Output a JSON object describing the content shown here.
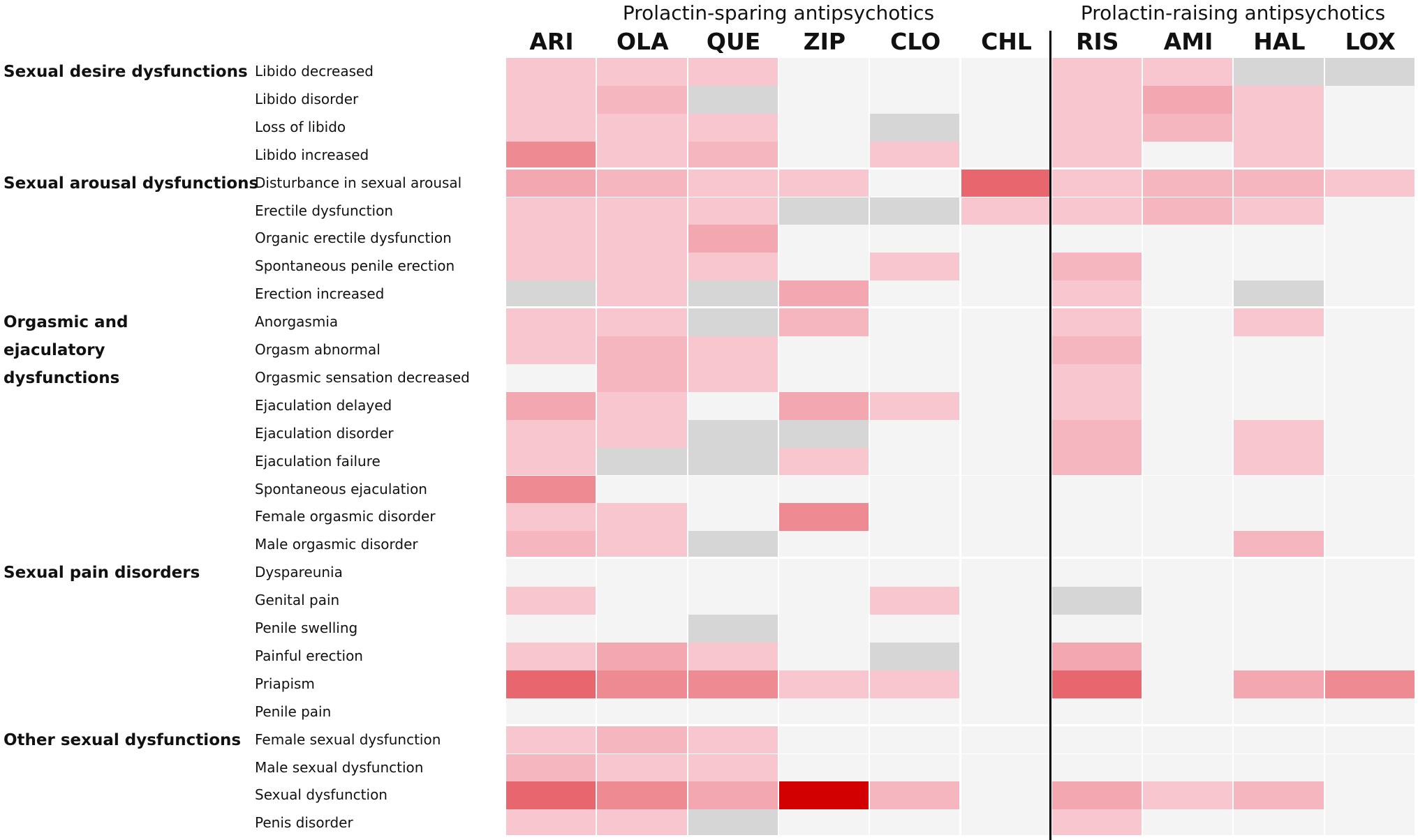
{
  "chart_data": {
    "type": "heatmap",
    "group_titles": [
      "Prolactin-sparing antipsychotics",
      "Prolactin-raising antipsychotics"
    ],
    "columns": [
      "ARI",
      "OLA",
      "QUE",
      "ZIP",
      "CLO",
      "CHL",
      "RIS",
      "AMI",
      "HAL",
      "LOX"
    ],
    "column_groups": [
      0,
      0,
      0,
      0,
      0,
      0,
      1,
      1,
      1,
      1
    ],
    "colors": {
      "0": "#f4f4f4",
      "NA": "#d6d6d6",
      "1": "#f8c6cf",
      "2": "#f6b6c0",
      "3": "#f3a7b0",
      "4": "#ee8a91",
      "5": "#e8666d",
      "6": "#d20000"
    },
    "categories": [
      {
        "label": "Sexual desire dysfunctions",
        "rows": [
          {
            "term": "Libido decreased",
            "values": [
              1,
              1,
              1,
              0,
              0,
              0,
              1,
              1,
              "NA",
              "NA"
            ]
          },
          {
            "term": "Libido disorder",
            "values": [
              1,
              2,
              "NA",
              0,
              0,
              0,
              1,
              3,
              1,
              0
            ]
          },
          {
            "term": "Loss of libido",
            "values": [
              1,
              1,
              1,
              0,
              "NA",
              0,
              1,
              2,
              1,
              0
            ]
          },
          {
            "term": "Libido increased",
            "values": [
              4,
              1,
              2,
              0,
              1,
              0,
              1,
              0,
              1,
              0
            ]
          }
        ]
      },
      {
        "label": "Sexual arousal dysfunctions",
        "rows": [
          {
            "term": "Disturbance in sexual arousal",
            "values": [
              3,
              2,
              1,
              1,
              0,
              5,
              1,
              2,
              2,
              1
            ]
          },
          {
            "term": "Erectile dysfunction",
            "values": [
              1,
              1,
              1,
              "NA",
              "NA",
              1,
              1,
              2,
              1,
              0
            ]
          },
          {
            "term": "Organic erectile dysfunction",
            "values": [
              1,
              1,
              3,
              0,
              0,
              0,
              0,
              0,
              0,
              0
            ]
          },
          {
            "term": "Spontaneous penile erection",
            "values": [
              1,
              1,
              1,
              0,
              1,
              0,
              2,
              0,
              0,
              0
            ]
          },
          {
            "term": "Erection increased",
            "values": [
              "NA",
              1,
              "NA",
              3,
              0,
              0,
              1,
              0,
              "NA",
              0
            ]
          }
        ]
      },
      {
        "label": "Orgasmic and ejaculatory dysfunctions",
        "rows": [
          {
            "term": "Anorgasmia",
            "values": [
              1,
              1,
              "NA",
              2,
              0,
              0,
              1,
              0,
              1,
              0
            ]
          },
          {
            "term": "Orgasm abnormal",
            "values": [
              1,
              2,
              1,
              0,
              0,
              0,
              2,
              0,
              0,
              0
            ]
          },
          {
            "term": "Orgasmic sensation decreased",
            "values": [
              0,
              2,
              1,
              0,
              0,
              0,
              1,
              0,
              0,
              0
            ]
          },
          {
            "term": "Ejaculation delayed",
            "values": [
              3,
              1,
              0,
              3,
              1,
              0,
              1,
              0,
              0,
              0
            ]
          },
          {
            "term": "Ejaculation disorder",
            "values": [
              1,
              1,
              "NA",
              "NA",
              0,
              0,
              2,
              0,
              1,
              0
            ]
          },
          {
            "term": "Ejaculation failure",
            "values": [
              1,
              "NA",
              "NA",
              1,
              0,
              0,
              2,
              0,
              1,
              0
            ]
          },
          {
            "term": "Spontaneous ejaculation",
            "values": [
              4,
              0,
              0,
              0,
              0,
              0,
              0,
              0,
              0,
              0
            ]
          },
          {
            "term": "Female orgasmic disorder",
            "values": [
              1,
              1,
              0,
              4,
              0,
              0,
              0,
              0,
              0,
              0
            ]
          },
          {
            "term": "Male orgasmic disorder",
            "values": [
              2,
              1,
              "NA",
              0,
              0,
              0,
              0,
              0,
              2,
              0
            ]
          }
        ]
      },
      {
        "label": "Sexual pain disorders",
        "rows": [
          {
            "term": "Dyspareunia",
            "values": [
              0,
              0,
              0,
              0,
              0,
              0,
              0,
              0,
              0,
              0
            ]
          },
          {
            "term": "Genital pain",
            "values": [
              1,
              0,
              0,
              0,
              1,
              0,
              "NA",
              0,
              0,
              0
            ]
          },
          {
            "term": "Penile swelling",
            "values": [
              0,
              0,
              "NA",
              0,
              0,
              0,
              0,
              0,
              0,
              0
            ]
          },
          {
            "term": "Painful erection",
            "values": [
              1,
              3,
              1,
              0,
              "NA",
              0,
              3,
              0,
              0,
              0
            ]
          },
          {
            "term": "Priapism",
            "values": [
              5,
              4,
              4,
              1,
              1,
              0,
              5,
              0,
              3,
              4
            ]
          },
          {
            "term": "Penile pain",
            "values": [
              0,
              0,
              0,
              0,
              0,
              0,
              0,
              0,
              0,
              0
            ]
          }
        ]
      },
      {
        "label": "Other sexual dysfunctions",
        "rows": [
          {
            "term": "Female sexual dysfunction",
            "values": [
              1,
              2,
              1,
              0,
              0,
              0,
              0,
              0,
              0,
              0
            ]
          },
          {
            "term": "Male sexual dysfunction",
            "values": [
              2,
              1,
              1,
              0,
              0,
              0,
              0,
              0,
              0,
              0
            ]
          },
          {
            "term": "Sexual dysfunction",
            "values": [
              5,
              4,
              3,
              6,
              2,
              0,
              3,
              1,
              2,
              0
            ]
          },
          {
            "term": "Penis disorder",
            "values": [
              1,
              1,
              "NA",
              0,
              0,
              0,
              1,
              0,
              0,
              0
            ]
          }
        ]
      }
    ]
  }
}
